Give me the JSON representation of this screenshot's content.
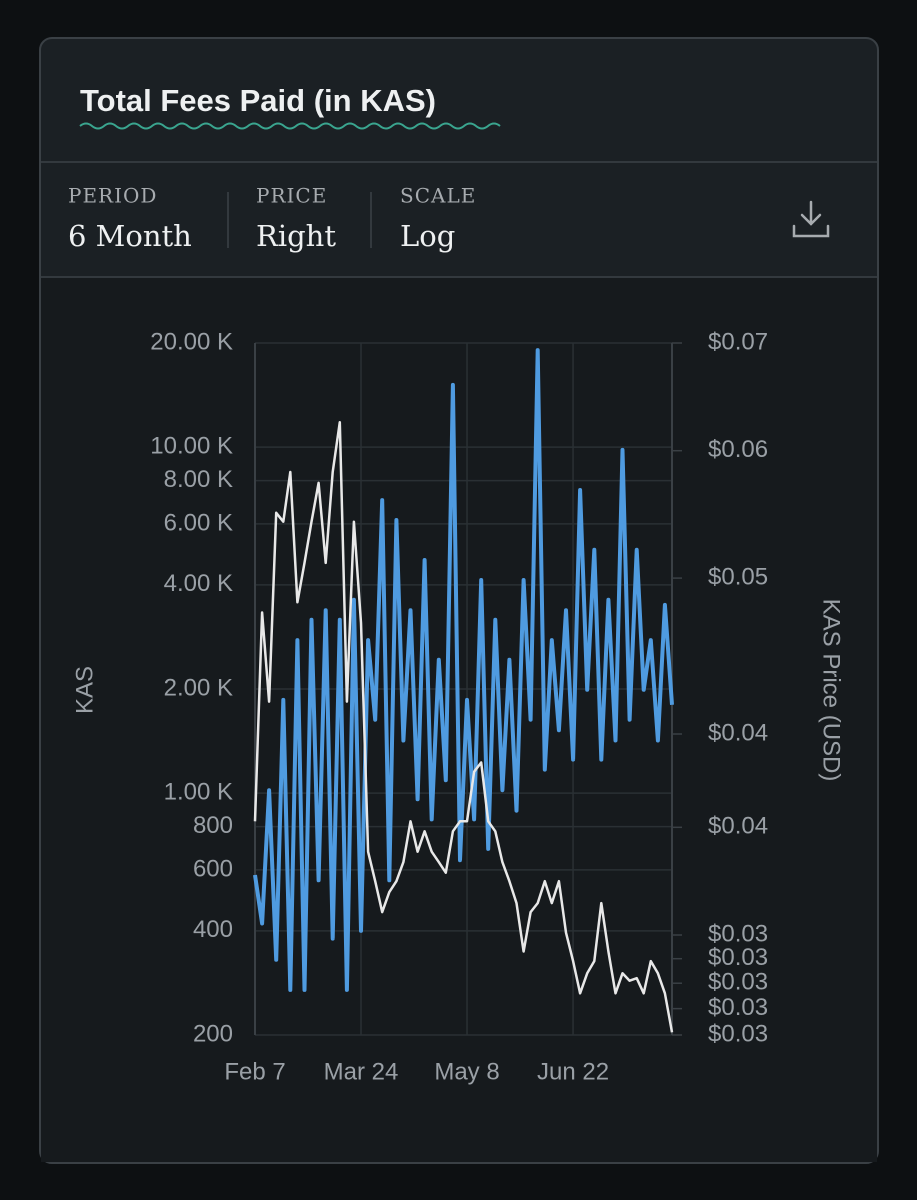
{
  "header": {
    "title": "Total Fees Paid (in KAS)"
  },
  "controls": [
    {
      "label": "PERIOD",
      "value": "6 Month"
    },
    {
      "label": "PRICE",
      "value": "Right"
    },
    {
      "label": "SCALE",
      "value": "Log"
    }
  ],
  "chart_data": {
    "type": "line",
    "yscale": "log",
    "y2scale": "log",
    "ylabel": "KAS",
    "y2label": "KAS Price (USD)",
    "grid": true,
    "categories": [
      "Feb 7",
      null,
      null,
      null,
      null,
      null,
      null,
      null,
      null,
      null,
      null,
      null,
      null,
      null,
      null,
      "Mar 24",
      null,
      null,
      null,
      null,
      null,
      null,
      null,
      null,
      null,
      null,
      null,
      null,
      null,
      null,
      "May 8",
      null,
      null,
      null,
      null,
      null,
      null,
      null,
      null,
      null,
      null,
      null,
      null,
      null,
      null,
      "Jun 22",
      null,
      null,
      null,
      null,
      null,
      null,
      null,
      null,
      null,
      null,
      null,
      null,
      null,
      null
    ],
    "ylim": [
      200,
      20000
    ],
    "yticks": [
      200,
      400,
      600,
      800,
      {
        "value": 1000,
        "label": "1.00 K"
      },
      {
        "value": 2000,
        "label": "2.00 K"
      },
      {
        "value": 4000,
        "label": "4.00 K"
      },
      {
        "value": 6000,
        "label": "6.00 K"
      },
      {
        "value": 8000,
        "label": "8.00 K"
      },
      {
        "value": 10000,
        "label": "10.00 K"
      },
      {
        "value": 20000,
        "label": "20.00 K"
      }
    ],
    "y2lim": [
      0.026,
      0.07
    ],
    "y2ticks": [
      {
        "value": 0.026,
        "label": "$0.03"
      },
      {
        "value": 0.027,
        "label": "$0.03"
      },
      {
        "value": 0.028,
        "label": "$0.03"
      },
      {
        "value": 0.029,
        "label": "$0.03"
      },
      {
        "value": 0.03,
        "label": "$0.03"
      },
      {
        "value": 0.035,
        "label": "$0.04"
      },
      {
        "value": 0.04,
        "label": "$0.04"
      },
      {
        "value": 0.05,
        "label": "$0.05"
      },
      {
        "value": 0.06,
        "label": "$0.06"
      },
      {
        "value": 0.07,
        "label": "$0.07"
      }
    ],
    "series": [
      {
        "color": "#4f9be0",
        "axis": "y",
        "values": [
          580,
          420,
          1020,
          330,
          1860,
          270,
          2770,
          270,
          3170,
          560,
          3380,
          380,
          3170,
          270,
          3620,
          400,
          2770,
          1630,
          7030,
          560,
          6160,
          1420,
          3380,
          960,
          4720,
          840,
          2430,
          1090,
          15130,
          640,
          1860,
          840,
          4130,
          690,
          3170,
          1020,
          2430,
          890,
          4130,
          1630,
          19080,
          1170,
          2770,
          1520,
          3380,
          1250,
          7520,
          1990,
          5050,
          1250,
          3620,
          1420,
          9820,
          1630,
          5050,
          1990,
          2770,
          1420,
          3500,
          1800
        ]
      },
      {
        "color": "#e8e8e8",
        "axis": "y2",
        "values": [
          0.0353,
          0.0476,
          0.0419,
          0.0549,
          0.0542,
          0.0582,
          0.0483,
          0.0511,
          0.0542,
          0.0573,
          0.0511,
          0.0582,
          0.0625,
          0.0419,
          0.0542,
          0.0469,
          0.0338,
          0.0324,
          0.031,
          0.0319,
          0.0324,
          0.0333,
          0.0353,
          0.0338,
          0.0348,
          0.0338,
          0.0333,
          0.0328,
          0.0348,
          0.0353,
          0.0353,
          0.0379,
          0.0384,
          0.0353,
          0.0348,
          0.0333,
          0.0324,
          0.0314,
          0.0293,
          0.031,
          0.0314,
          0.0324,
          0.0314,
          0.0324,
          0.0301,
          0.0289,
          0.0276,
          0.0284,
          0.0289,
          0.0314,
          0.0293,
          0.0276,
          0.0284,
          0.0281,
          0.0282,
          0.0276,
          0.0289,
          0.0284,
          0.0276,
          0.0261
        ]
      }
    ]
  }
}
